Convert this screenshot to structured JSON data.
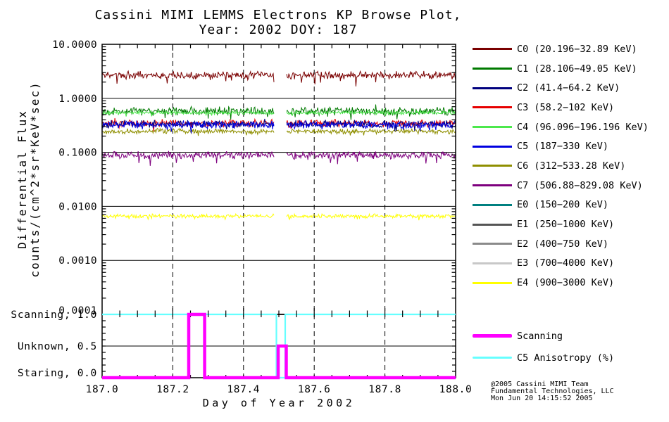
{
  "title": {
    "line1": "Cassini MIMI LEMMS Electrons KP Browse Plot,",
    "line2": "Year: 2002 DOY: 187"
  },
  "axes": {
    "y_label_line1": "Differential Flux",
    "y_label_line2": "counts/(cm^2*sr*KeV*sec)",
    "x_label": "Day of Year 2002",
    "x_tick_labels": [
      "187.0",
      "187.2",
      "187.4",
      "187.6",
      "187.8",
      "188.0"
    ],
    "x_tick_values": [
      187.0,
      187.2,
      187.4,
      187.6,
      187.8,
      188.0
    ],
    "y_tick_labels": [
      "10.0000",
      "1.0000",
      "0.1000",
      "0.0100",
      "0.0010",
      "0.0001"
    ],
    "y_tick_values": [
      10,
      1,
      0.1,
      0.01,
      0.001,
      0.0001
    ],
    "mode_tick_labels": [
      "Scanning, 1.0",
      "Unknown, 0.5",
      "Staring, 0.0"
    ],
    "mode_tick_values": [
      1.0,
      0.5,
      0.0
    ]
  },
  "legend_channels": [
    {
      "label": "C0 (20.196−32.89 KeV)",
      "color": "#7A0000"
    },
    {
      "label": "C1 (28.106−49.05 KeV)",
      "color": "#007A00"
    },
    {
      "label": "C2 (41.4−64.2 KeV)",
      "color": "#00007E"
    },
    {
      "label": "C3 (58.2−102 KeV)",
      "color": "#E60000"
    },
    {
      "label": "C4 (96.096−196.196 KeV)",
      "color": "#4CE84C"
    },
    {
      "label": "C5 (187−330 KeV)",
      "color": "#0000E0"
    },
    {
      "label": "C6 (312−533.28 KeV)",
      "color": "#8F8F00"
    },
    {
      "label": "C7 (506.88−829.08 KeV)",
      "color": "#7E007E"
    },
    {
      "label": "E0 (150−200 KeV)",
      "color": "#008080"
    },
    {
      "label": "E1 (250−1000 KeV)",
      "color": "#555555"
    },
    {
      "label": "E2 (400−750 KeV)",
      "color": "#8A8A8A"
    },
    {
      "label": "E3 (700−4000 KeV)",
      "color": "#C8C8C8"
    },
    {
      "label": "E4 (900−3000 KeV)",
      "color": "#FFFF00"
    }
  ],
  "legend_modes": [
    {
      "label": "Scanning",
      "color": "#FF00FF",
      "thickness": 5
    },
    {
      "label": "C5 Anisotropy (%)",
      "color": "#66FFFF",
      "thickness": 3
    }
  ],
  "credit": {
    "line1": "@2005 Cassini MIMI Team",
    "line2": "Fundamental Technologies, LLC",
    "line3": "Mon Jun 20 14:15:52 2005"
  },
  "chart_data": {
    "type": "line",
    "title": "Cassini MIMI LEMMS Electrons KP Browse Plot, Year: 2002 DOY: 187",
    "xlabel": "Day of Year 2002",
    "ylabel": "Differential Flux counts/(cm^2*sr*KeV*sec)",
    "x_range": [
      187.0,
      188.0
    ],
    "y_scale": "log",
    "y_range": [
      0.0001,
      10.0
    ],
    "grid": "dashed vertical lines every 0.2 day; solid horizontal lines at each decade",
    "data_gap_x": [
      187.487,
      187.522
    ],
    "series": [
      {
        "name": "C0",
        "energy_kev": "20.196-32.89",
        "color": "#7A0000",
        "mean_flux": 2.7,
        "noise_dex": 0.05,
        "spike_dex": 0.16,
        "plotted": true,
        "seed": 11
      },
      {
        "name": "C1",
        "energy_kev": "28.106-49.05",
        "color": "#007A00",
        "mean_flux": 0.58,
        "noise_dex": 0.055,
        "spike_dex": 0.13,
        "plotted": true,
        "seed": 12
      },
      {
        "name": "C2",
        "energy_kev": "41.4-64.2",
        "color": "#00007E",
        "mean_flux": 0.335,
        "noise_dex": 0.05,
        "spike_dex": 0.12,
        "plotted": true,
        "seed": 13
      },
      {
        "name": "C3",
        "energy_kev": "58.2-102",
        "color": "#E60000",
        "mean_flux": 0.345,
        "noise_dex": 0.05,
        "spike_dex": 0.1,
        "plotted": true,
        "seed": 14
      },
      {
        "name": "C4",
        "energy_kev": "96.096-196.196",
        "color": "#4CE84C",
        "mean_flux": 0.54,
        "noise_dex": 0.022,
        "spike_dex": 0.05,
        "plotted": true,
        "seed": 15
      },
      {
        "name": "C5",
        "energy_kev": "187-330",
        "color": "#0000E0",
        "mean_flux": 0.325,
        "noise_dex": 0.05,
        "spike_dex": 0.12,
        "plotted": true,
        "seed": 16
      },
      {
        "name": "C6",
        "energy_kev": "312-533.28",
        "color": "#8F8F00",
        "mean_flux": 0.245,
        "noise_dex": 0.035,
        "spike_dex": 0.08,
        "plotted": true,
        "seed": 17
      },
      {
        "name": "C7",
        "energy_kev": "506.88-829.08",
        "color": "#7E007E",
        "mean_flux": 0.088,
        "noise_dex": 0.05,
        "spike_dex": 0.16,
        "plotted": true,
        "seed": 18
      },
      {
        "name": "E0",
        "energy_kev": "150-200",
        "color": "#008080",
        "mean_flux": null,
        "plotted": false
      },
      {
        "name": "E1",
        "energy_kev": "250-1000",
        "color": "#555555",
        "mean_flux": null,
        "plotted": false
      },
      {
        "name": "E2",
        "energy_kev": "400-750",
        "color": "#8A8A8A",
        "mean_flux": null,
        "plotted": false
      },
      {
        "name": "E3",
        "energy_kev": "700-4000",
        "color": "#C8C8C8",
        "mean_flux": null,
        "plotted": false
      },
      {
        "name": "E4",
        "energy_kev": "900-3000",
        "color": "#FFFF00",
        "mean_flux": 0.0066,
        "noise_dex": 0.028,
        "spike_dex": 0.05,
        "plotted": true,
        "seed": 19
      }
    ],
    "draw_order": [
      "C0",
      "C1",
      "C4",
      "C6",
      "C3",
      "C2",
      "C5",
      "C7",
      "E4"
    ],
    "mode_panel": {
      "ylim": [
        0.0,
        1.0
      ],
      "scanning_color": "#FF00FF",
      "anisotropy_color": "#66FFFF",
      "scanning_steps": [
        [
          187.0,
          0.0
        ],
        [
          187.245,
          0.0
        ],
        [
          187.245,
          1.0
        ],
        [
          187.29,
          1.0
        ],
        [
          187.29,
          0.0
        ],
        [
          187.498,
          0.0
        ],
        [
          187.498,
          0.5
        ],
        [
          187.521,
          0.5
        ],
        [
          187.521,
          0.0
        ],
        [
          188.0,
          0.0
        ]
      ],
      "anisotropy_steps": [
        [
          187.0,
          1.0
        ],
        [
          187.493,
          1.0
        ],
        [
          187.493,
          0.0
        ],
        [
          187.518,
          0.0
        ],
        [
          187.518,
          1.0
        ],
        [
          188.0,
          1.0
        ]
      ]
    }
  }
}
